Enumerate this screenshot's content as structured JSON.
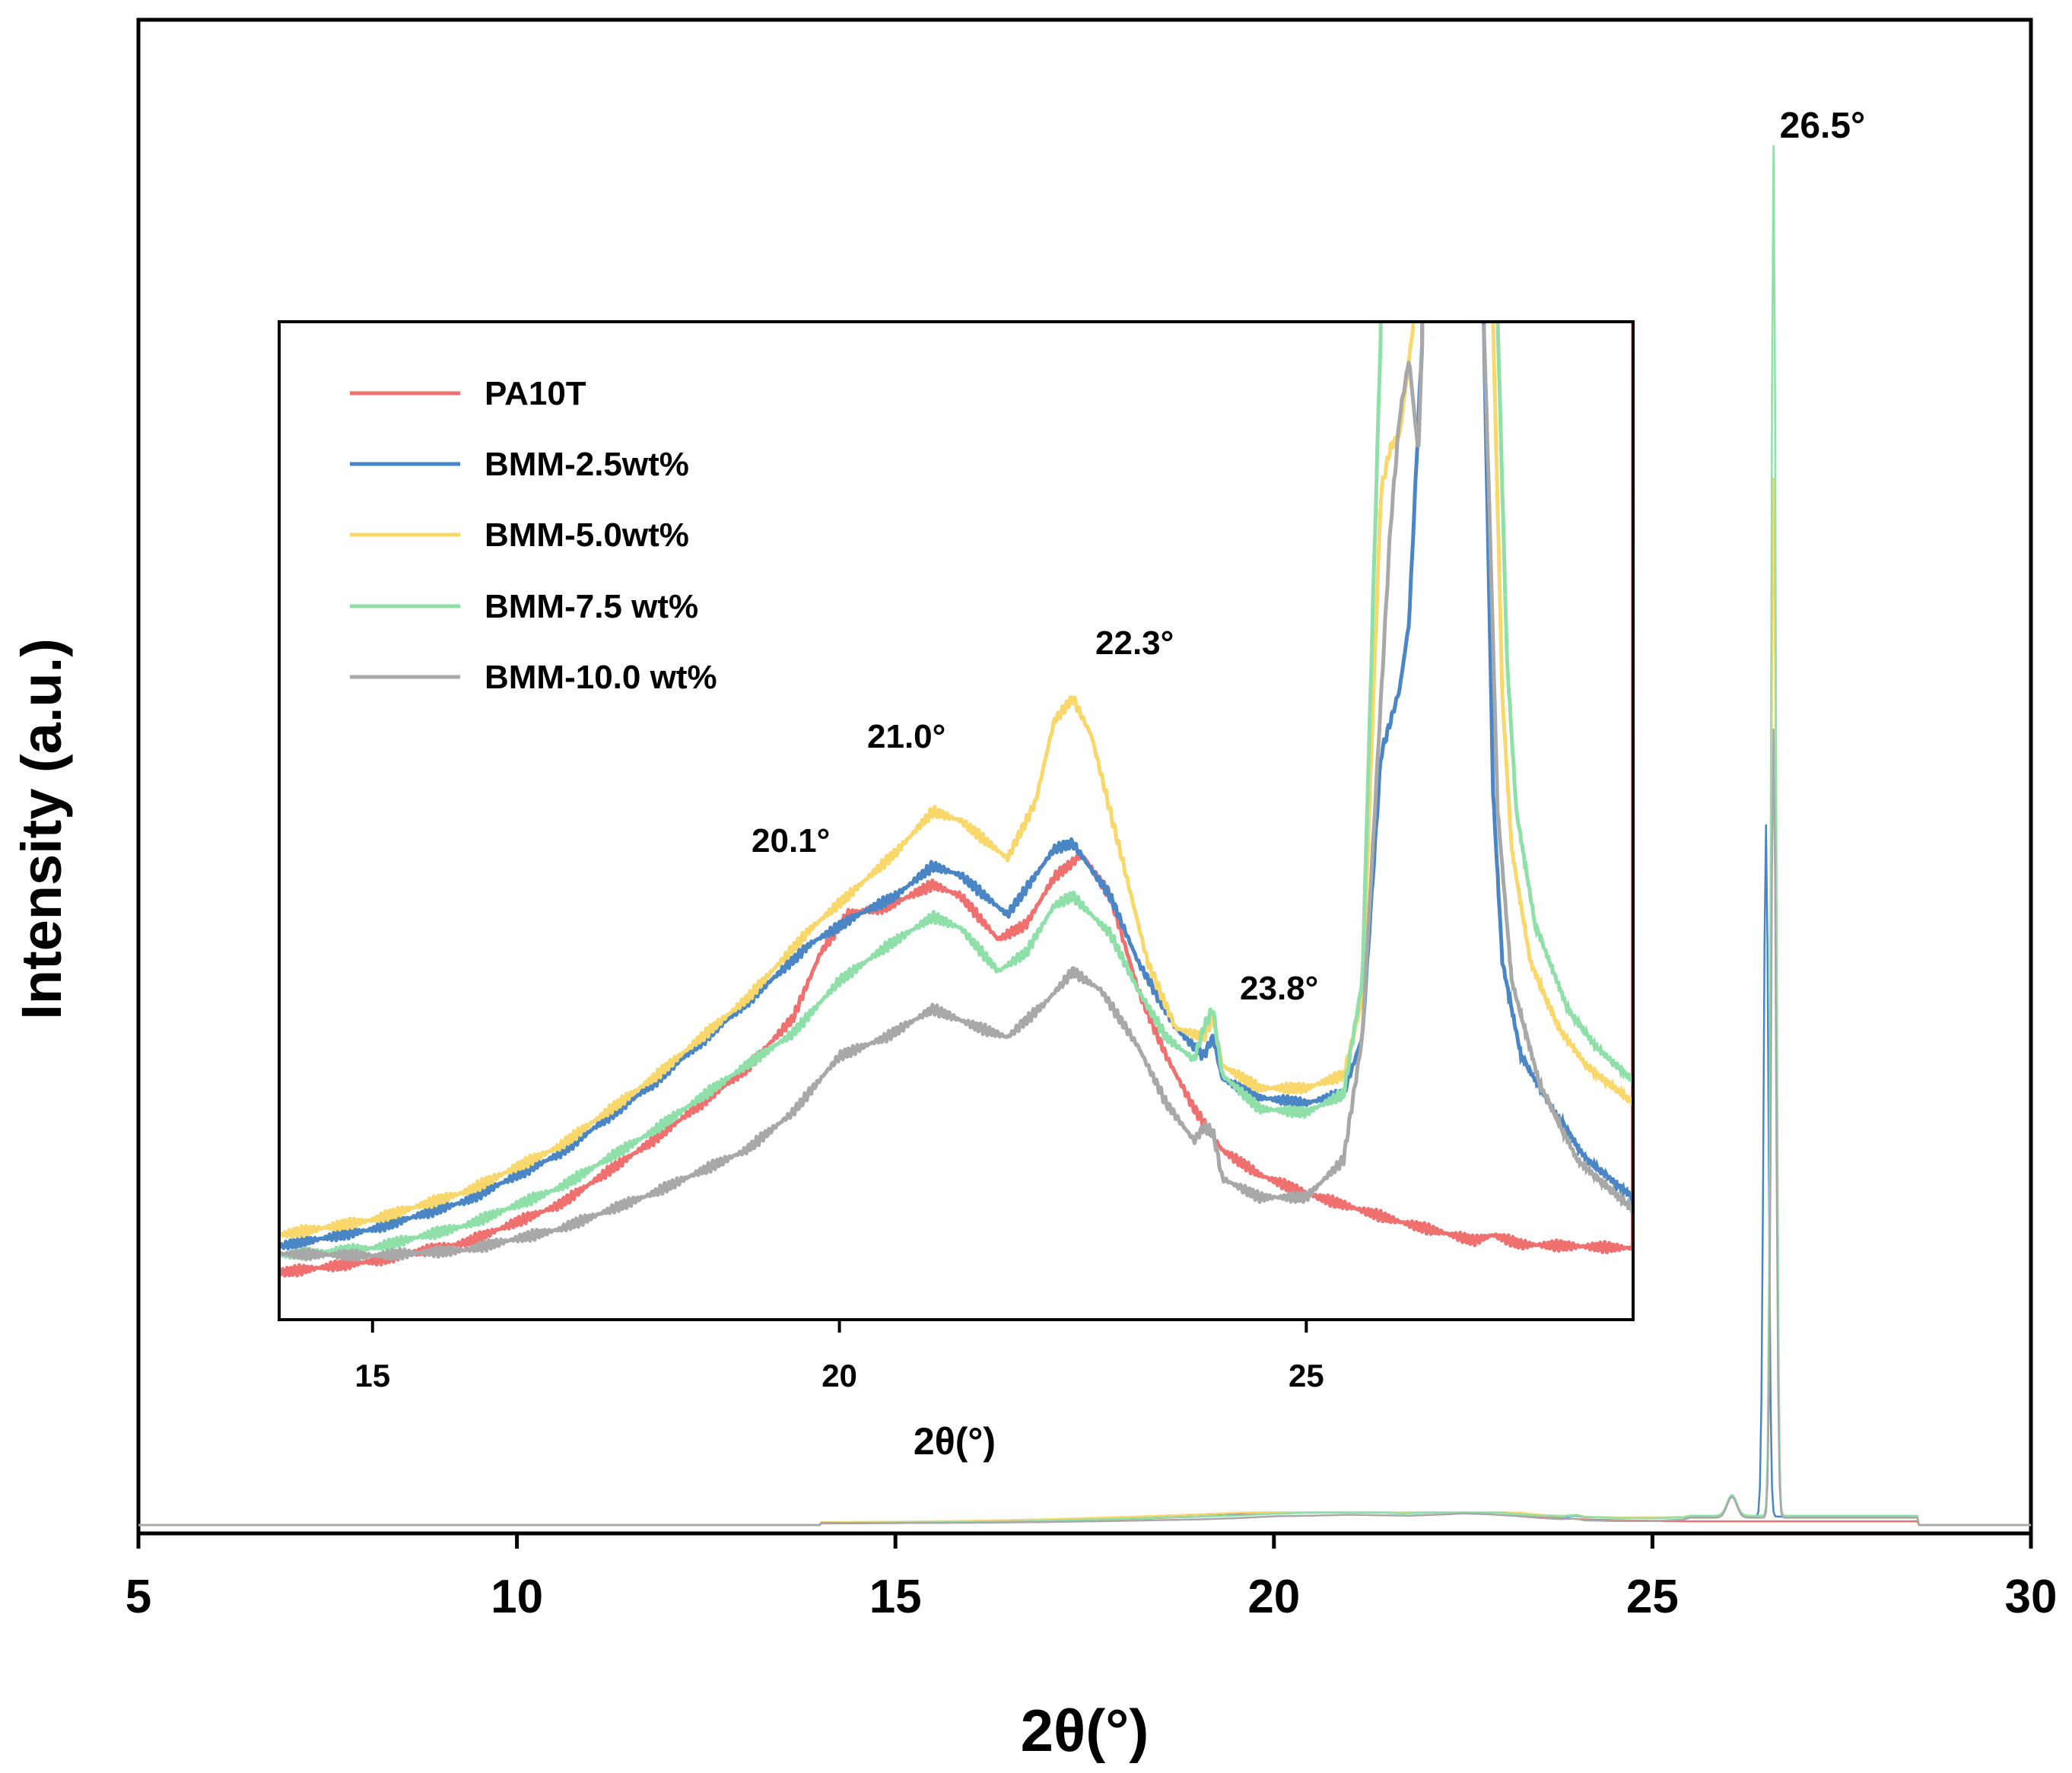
{
  "chart_data": {
    "type": "line",
    "x_units": "degrees 2θ",
    "main": {
      "xlabel": "2θ(°)",
      "ylabel": "Intensity (a.u.)",
      "xlim": [
        5,
        30
      ],
      "ylim": [
        0,
        1.0
      ],
      "xticks": [
        "5",
        "10",
        "15",
        "20",
        "25",
        "30"
      ],
      "yticks_shown": false,
      "annotations": [
        {
          "text": "26.5°",
          "x": 26.6,
          "y": 0.99
        }
      ]
    },
    "inset": {
      "xlabel": "2θ(°)",
      "xlim": [
        14,
        28.5
      ],
      "ylim": [
        0,
        0.053
      ],
      "xticks": [
        "15",
        "20",
        "25"
      ],
      "annotations": [
        {
          "text": "20.1°",
          "x": 19.6,
          "y": 0.0237
        },
        {
          "text": "21.0°",
          "x": 20.8,
          "y": 0.0272
        },
        {
          "text": "22.3°",
          "x": 22.9,
          "y": 0.0337
        },
        {
          "text": "23.8°",
          "x": 24.8,
          "y": 0.0176
        }
      ]
    },
    "legend": {
      "location": "inset top-left",
      "entries": [
        "PA10T",
        "BMM-2.5wt%",
        "BMM-5.0wt%",
        "BMM-7.5 wt%",
        "BMM-10.0 wt%"
      ]
    },
    "series": [
      {
        "name": "PA10T",
        "color": "#f07070",
        "peak_center": 26.6,
        "peak_height": 0.0,
        "points": [
          [
            14.0,
            0.0025
          ],
          [
            15.0,
            0.0031
          ],
          [
            16.0,
            0.0041
          ],
          [
            17.0,
            0.0061
          ],
          [
            18.0,
            0.0095
          ],
          [
            19.0,
            0.0133
          ],
          [
            19.5,
            0.016
          ],
          [
            19.8,
            0.0195
          ],
          [
            20.1,
            0.0216
          ],
          [
            20.5,
            0.0219
          ],
          [
            21.0,
            0.0231
          ],
          [
            21.3,
            0.0225
          ],
          [
            21.7,
            0.0202
          ],
          [
            22.0,
            0.021
          ],
          [
            22.3,
            0.0235
          ],
          [
            22.6,
            0.0247
          ],
          [
            22.9,
            0.0225
          ],
          [
            23.2,
            0.0175
          ],
          [
            23.5,
            0.014
          ],
          [
            23.8,
            0.0112
          ],
          [
            24.1,
            0.009
          ],
          [
            24.5,
            0.0077
          ],
          [
            25.0,
            0.0067
          ],
          [
            26.0,
            0.0052
          ],
          [
            26.8,
            0.0042
          ],
          [
            27.0,
            0.0045
          ],
          [
            27.3,
            0.004
          ],
          [
            28.5,
            0.0038
          ]
        ]
      },
      {
        "name": "BMM-2.5wt%",
        "color": "#4a86c6",
        "peak_center": 26.5,
        "peak_height": 0.5,
        "points": [
          [
            14.0,
            0.0039
          ],
          [
            15.0,
            0.0048
          ],
          [
            16.0,
            0.0063
          ],
          [
            17.0,
            0.0088
          ],
          [
            18.0,
            0.0125
          ],
          [
            19.0,
            0.0168
          ],
          [
            19.7,
            0.02
          ],
          [
            20.2,
            0.0215
          ],
          [
            20.6,
            0.0225
          ],
          [
            21.0,
            0.0241
          ],
          [
            21.3,
            0.0236
          ],
          [
            21.8,
            0.0215
          ],
          [
            22.3,
            0.025
          ],
          [
            22.5,
            0.0253
          ],
          [
            22.9,
            0.0225
          ],
          [
            23.2,
            0.019
          ],
          [
            23.6,
            0.0155
          ],
          [
            23.9,
            0.014
          ],
          [
            24.0,
            0.015
          ],
          [
            24.1,
            0.0128
          ],
          [
            24.5,
            0.0118
          ],
          [
            25.0,
            0.0115
          ],
          [
            25.4,
            0.012
          ],
          [
            25.6,
            0.015
          ],
          [
            25.8,
            0.03
          ],
          [
            26.0,
            0.0335
          ],
          [
            26.1,
            0.037
          ],
          [
            26.25,
            0.053
          ]
        ]
      },
      {
        "name": "BMM-5.0wt%",
        "color": "#f9d76a",
        "peak_center": 26.6,
        "peak_height": 0.75,
        "points": [
          [
            14.0,
            0.0045
          ],
          [
            15.0,
            0.0053
          ],
          [
            16.0,
            0.0068
          ],
          [
            17.0,
            0.0092
          ],
          [
            18.0,
            0.0128
          ],
          [
            19.0,
            0.017
          ],
          [
            19.7,
            0.0208
          ],
          [
            20.2,
            0.023
          ],
          [
            20.6,
            0.0248
          ],
          [
            21.0,
            0.027
          ],
          [
            21.3,
            0.0265
          ],
          [
            21.8,
            0.0245
          ],
          [
            22.1,
            0.0275
          ],
          [
            22.3,
            0.0318
          ],
          [
            22.5,
            0.033
          ],
          [
            22.7,
            0.031
          ],
          [
            23.0,
            0.025
          ],
          [
            23.3,
            0.019
          ],
          [
            23.6,
            0.0155
          ],
          [
            23.9,
            0.015
          ],
          [
            24.0,
            0.016
          ],
          [
            24.1,
            0.0135
          ],
          [
            24.5,
            0.0123
          ],
          [
            25.0,
            0.0123
          ],
          [
            25.4,
            0.013
          ],
          [
            25.6,
            0.017
          ],
          [
            25.8,
            0.044
          ],
          [
            25.9,
            0.0463
          ],
          [
            26.0,
            0.047
          ],
          [
            26.15,
            0.053
          ]
        ]
      },
      {
        "name": "BMM-7.5 wt%",
        "color": "#8ee0a8",
        "peak_center": 26.6,
        "peak_height": 0.99,
        "points": [
          [
            14.0,
            0.0034
          ],
          [
            15.0,
            0.0038
          ],
          [
            16.0,
            0.005
          ],
          [
            17.0,
            0.007
          ],
          [
            18.0,
            0.01
          ],
          [
            19.0,
            0.0135
          ],
          [
            19.5,
            0.0152
          ],
          [
            20.0,
            0.018
          ],
          [
            20.5,
            0.0198
          ],
          [
            21.0,
            0.0214
          ],
          [
            21.3,
            0.0208
          ],
          [
            21.7,
            0.0185
          ],
          [
            22.0,
            0.0195
          ],
          [
            22.3,
            0.022
          ],
          [
            22.5,
            0.0225
          ],
          [
            22.9,
            0.0205
          ],
          [
            23.2,
            0.0175
          ],
          [
            23.5,
            0.015
          ],
          [
            23.8,
            0.0138
          ],
          [
            23.9,
            0.0155
          ],
          [
            24.0,
            0.0165
          ],
          [
            24.1,
            0.013
          ],
          [
            24.5,
            0.0112
          ],
          [
            25.0,
            0.011
          ],
          [
            25.4,
            0.012
          ],
          [
            25.6,
            0.018
          ],
          [
            25.8,
            0.053
          ]
        ]
      },
      {
        "name": "BMM-10.0 wt%",
        "color": "#a8a8a8",
        "peak_center": 26.6,
        "peak_height": 0.57,
        "points": [
          [
            14.0,
            0.0035
          ],
          [
            15.0,
            0.0034
          ],
          [
            16.0,
            0.0037
          ],
          [
            17.0,
            0.0048
          ],
          [
            18.0,
            0.0067
          ],
          [
            19.0,
            0.009
          ],
          [
            19.5,
            0.011
          ],
          [
            20.0,
            0.014
          ],
          [
            20.5,
            0.015
          ],
          [
            21.0,
            0.0165
          ],
          [
            21.5,
            0.0155
          ],
          [
            21.8,
            0.015
          ],
          [
            22.2,
            0.0168
          ],
          [
            22.5,
            0.0185
          ],
          [
            22.8,
            0.0175
          ],
          [
            23.2,
            0.0145
          ],
          [
            23.5,
            0.0115
          ],
          [
            23.8,
            0.0095
          ],
          [
            23.9,
            0.0102
          ],
          [
            24.0,
            0.01
          ],
          [
            24.1,
            0.0075
          ],
          [
            24.5,
            0.0065
          ],
          [
            25.0,
            0.0065
          ],
          [
            25.4,
            0.0085
          ],
          [
            25.6,
            0.015
          ],
          [
            25.8,
            0.033
          ],
          [
            25.9,
            0.042
          ],
          [
            26.0,
            0.048
          ],
          [
            26.1,
            0.051
          ],
          [
            26.2,
            0.046
          ],
          [
            26.25,
            0.053
          ]
        ]
      }
    ]
  }
}
